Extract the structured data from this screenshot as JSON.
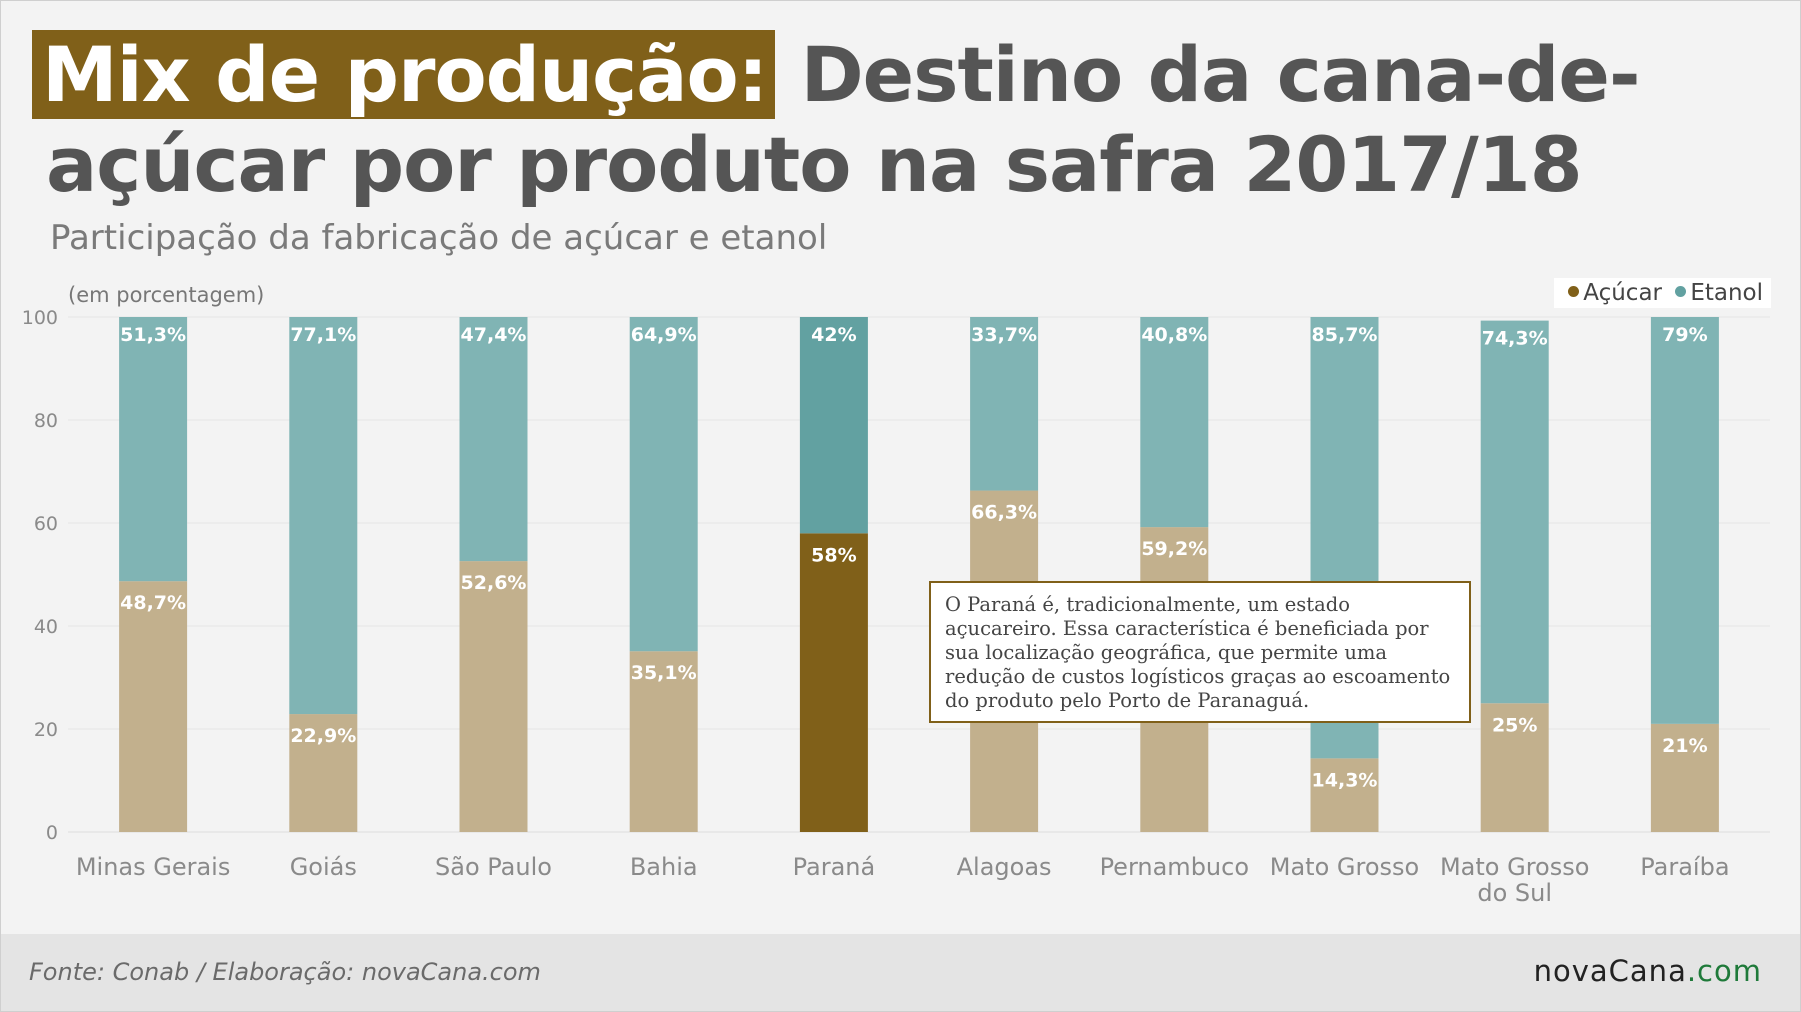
{
  "header": {
    "title_highlight": "Mix de produção:",
    "title_rest": " Destino da cana-de-açúcar por produto na safra 2017/18",
    "subtitle": "Participação da fabricação de açúcar e etanol",
    "unit_note": "(em porcentagem)"
  },
  "legend": {
    "items": [
      {
        "label": "Açúcar",
        "color": "#806019"
      },
      {
        "label": "Etanol",
        "color": "#62a1a1"
      }
    ]
  },
  "note": {
    "text": "O Paraná é, tradicionalmente, um estado açucareiro. Essa característica é beneficiada por sua localização geográfica, que permite uma redução de custos logísticos graças ao escoamento do produto pelo Porto de Paranaguá."
  },
  "footer": {
    "source": "Fonte: Conab / Elaboração: novaCana.com",
    "brand_main": "novaCana",
    "brand_suffix": ".com"
  },
  "colors": {
    "acucar_highlight": "#806019",
    "acucar_muted": "#c2b08d",
    "etanol_highlight": "#62a1a1",
    "etanol_muted": "#80b4b4",
    "highlight_category": "Paraná"
  },
  "chart_data": {
    "type": "bar",
    "stacked": true,
    "categories": [
      "Minas Gerais",
      "Goiás",
      "São Paulo",
      "Bahia",
      "Paraná",
      "Alagoas",
      "Pernambuco",
      "Mato Grosso",
      "Mato Grosso do Sul",
      "Paraíba"
    ],
    "series": [
      {
        "name": "Açúcar",
        "values": [
          48.7,
          22.9,
          52.6,
          35.1,
          58,
          66.3,
          59.2,
          14.3,
          25,
          21
        ],
        "labels": [
          "48,7%",
          "22,9%",
          "52,6%",
          "35,1%",
          "58%",
          "66,3%",
          "59,2%",
          "14,3%",
          "25%",
          "21%"
        ]
      },
      {
        "name": "Etanol",
        "values": [
          51.3,
          77.1,
          47.4,
          64.9,
          42,
          33.7,
          40.8,
          85.7,
          74.3,
          79
        ],
        "labels": [
          "51,3%",
          "77,1%",
          "47,4%",
          "64,9%",
          "42%",
          "33,7%",
          "40,8%",
          "85,7%",
          "74,3%",
          "79%"
        ]
      }
    ],
    "ylim": [
      0,
      100
    ],
    "yticks": [
      0,
      20,
      40,
      60,
      80,
      100
    ],
    "grid": true,
    "legend_position": "top-right"
  }
}
